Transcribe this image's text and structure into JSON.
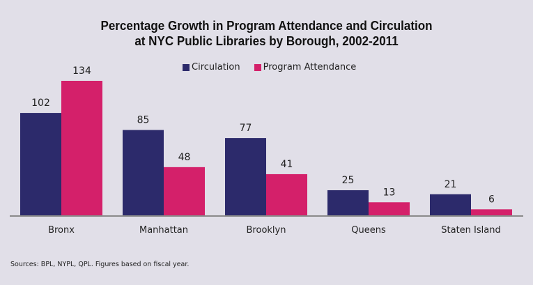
{
  "chart_data": {
    "type": "bar",
    "title": "Percentage Growth in Program Attendance and Circulation at NYC Public Libraries by Borough, 2002-2011",
    "title_lines": [
      "Percentage Growth in Program Attendance and Circulation",
      "at NYC Public Libraries by Borough, 2002-2011"
    ],
    "categories": [
      "Bronx",
      "Manhattan",
      "Brooklyn",
      "Queens",
      "Staten Island"
    ],
    "series": [
      {
        "name": "Circulation",
        "color": "#2c2a6b",
        "values": [
          102,
          85,
          77,
          25,
          21
        ]
      },
      {
        "name": "Program Attendance",
        "color": "#d4206a",
        "values": [
          134,
          48,
          41,
          13,
          6
        ]
      }
    ],
    "xlabel": "",
    "ylabel": "",
    "ylim": [
      0,
      134
    ],
    "grid": false,
    "legend_position": "top-center",
    "data_labels": true
  },
  "footer": {
    "source": "Sources: BPL, NYPL, QPL. Figures based on fiscal year."
  }
}
